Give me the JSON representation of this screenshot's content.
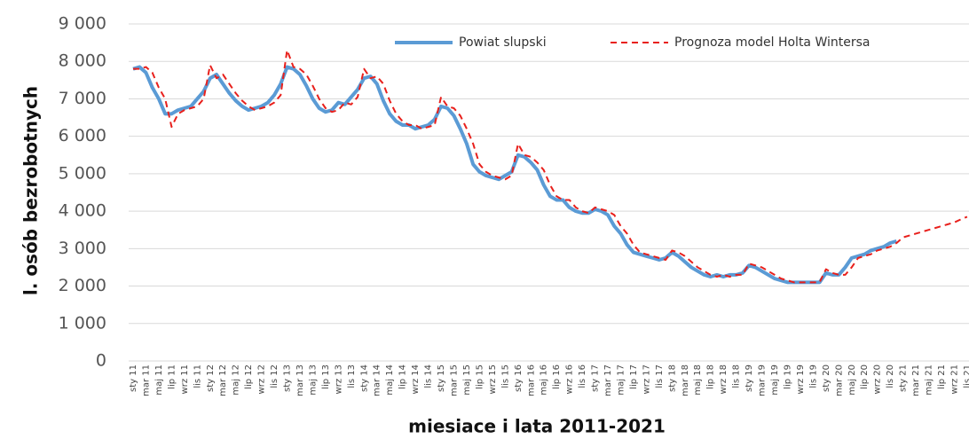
{
  "chart_data": {
    "type": "line",
    "y_label": "l. osób bezrobotnych",
    "x_label": "miesiace i lata 2011-2021",
    "categories": [
      "sty 11",
      null,
      "mar 11",
      null,
      "maj 11",
      null,
      "lip 11",
      null,
      "wrz 11",
      null,
      "lis 11",
      null,
      "sty 12",
      null,
      "mar 12",
      null,
      "maj 12",
      null,
      "lip 12",
      null,
      "wrz 12",
      null,
      "lis 12",
      null,
      "sty 13",
      null,
      "mar 13",
      null,
      "maj 13",
      null,
      "lip 13",
      null,
      "wrz 13",
      null,
      "lis 13",
      null,
      "sty 14",
      null,
      "mar 14",
      null,
      "maj 14",
      null,
      "lip 14",
      null,
      "wrz 14",
      null,
      "lis 14",
      null,
      "sty 15",
      null,
      "mar 15",
      null,
      "maj 15",
      null,
      "lip 15",
      null,
      "wrz 15",
      null,
      "lis 15",
      null,
      "sty 16",
      null,
      "mar 16",
      null,
      "maj 16",
      null,
      "lip 16",
      null,
      "wrz 16",
      null,
      "lis 16",
      null,
      "sty 17",
      null,
      "mar 17",
      null,
      "maj 17",
      null,
      "lip 17",
      null,
      "wrz 17",
      null,
      "lis 17",
      null,
      "sty 18",
      null,
      "mar 18",
      null,
      "maj 18",
      null,
      "lip 18",
      null,
      "wrz 18",
      null,
      "lis 18",
      null,
      "sty 19",
      null,
      "mar 19",
      null,
      "maj 19",
      null,
      "lip 19",
      null,
      "wrz 19",
      null,
      "lis 19",
      null,
      "sty 20",
      null,
      "mar 20",
      null,
      "maj 20",
      null,
      "lip 20",
      null,
      "wrz 20",
      null,
      "lis 20",
      null,
      "sty 21",
      null,
      "mar 21",
      null,
      "maj 21",
      null,
      "lip 21",
      null,
      "wrz 21",
      null,
      "lis 21"
    ],
    "series": [
      {
        "name": "Powiat slupski",
        "color": "#5b9bd5",
        "values": [
          7800,
          7850,
          7700,
          7300,
          7000,
          6600,
          6600,
          6700,
          6750,
          6800,
          7000,
          7200,
          7550,
          7650,
          7400,
          7150,
          6950,
          6800,
          6700,
          6750,
          6800,
          6900,
          7100,
          7400,
          7850,
          7800,
          7650,
          7350,
          7000,
          6750,
          6650,
          6700,
          6900,
          6850,
          7050,
          7250,
          7550,
          7600,
          7400,
          6950,
          6600,
          6400,
          6300,
          6300,
          6200,
          6250,
          6300,
          6450,
          6800,
          6750,
          6550,
          6200,
          5800,
          5250,
          5050,
          4950,
          4900,
          4850,
          4950,
          5050,
          5500,
          5450,
          5300,
          5100,
          4700,
          4400,
          4300,
          4300,
          4100,
          4000,
          3950,
          3950,
          4050,
          4000,
          3900,
          3600,
          3400,
          3100,
          2900,
          2850,
          2800,
          2750,
          2700,
          2750,
          2900,
          2800,
          2650,
          2500,
          2400,
          2300,
          2250,
          2300,
          2250,
          2300,
          2300,
          2350,
          2550,
          2500,
          2400,
          2300,
          2200,
          2150,
          2100,
          2100,
          2100,
          2100,
          2100,
          2100,
          2350,
          2300,
          2300,
          2500,
          2750,
          2800,
          2850,
          2950,
          3000,
          3050,
          3150,
          3200,
          null,
          null,
          null,
          null,
          null,
          null,
          null,
          null,
          null,
          null,
          null
        ]
      },
      {
        "name": "Prognoza model Holta Wintersa",
        "color": "#e8201c",
        "dashed": true,
        "values": [
          7800,
          7800,
          7850,
          7700,
          7300,
          7000,
          6250,
          6600,
          6700,
          6750,
          6800,
          7000,
          7900,
          7550,
          7650,
          7400,
          7150,
          6950,
          6800,
          6700,
          6750,
          6800,
          6900,
          7100,
          8300,
          7850,
          7800,
          7650,
          7350,
          7000,
          6750,
          6650,
          6700,
          6900,
          6850,
          7050,
          7800,
          7550,
          7600,
          7400,
          6950,
          6600,
          6400,
          6300,
          6300,
          6200,
          6250,
          6300,
          7050,
          6800,
          6750,
          6550,
          6200,
          5800,
          5250,
          5050,
          4950,
          4900,
          4850,
          4950,
          5800,
          5500,
          5450,
          5300,
          5100,
          4700,
          4400,
          4300,
          4300,
          4100,
          4000,
          3950,
          4100,
          4050,
          4000,
          3900,
          3600,
          3400,
          3100,
          2900,
          2850,
          2800,
          2750,
          2700,
          2950,
          2900,
          2800,
          2650,
          2500,
          2400,
          2300,
          2250,
          2300,
          2250,
          2300,
          2300,
          2600,
          2550,
          2500,
          2400,
          2300,
          2200,
          2150,
          2100,
          2100,
          2100,
          2100,
          2100,
          2450,
          2350,
          2300,
          2300,
          2500,
          2750,
          2800,
          2850,
          2950,
          3000,
          3050,
          3150,
          3300,
          3350,
          3400,
          3450,
          3500,
          3550,
          3600,
          3650,
          3700,
          3780,
          3850
        ]
      }
    ],
    "ylim": [
      0,
      9000
    ],
    "yticks": [
      {
        "value": 0,
        "label": "0"
      },
      {
        "value": 1000,
        "label": "1 000"
      },
      {
        "value": 2000,
        "label": "2 000"
      },
      {
        "value": 3000,
        "label": "3 000"
      },
      {
        "value": 4000,
        "label": "4 000"
      },
      {
        "value": 5000,
        "label": "5 000"
      },
      {
        "value": 6000,
        "label": "6 000"
      },
      {
        "value": 7000,
        "label": "7 000"
      },
      {
        "value": 8000,
        "label": "8 000"
      },
      {
        "value": 9000,
        "label": "9 000"
      }
    ],
    "grid": true,
    "legend": "top"
  }
}
